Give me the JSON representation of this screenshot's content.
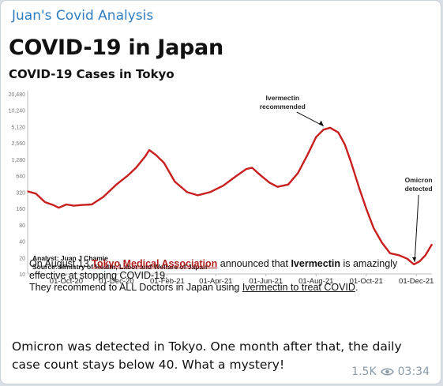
{
  "message": {
    "channel_name": "Juan's Covid Analysis",
    "text": "Omicron was detected in Tokyo. One month after that, the daily case count stays below 40. What a mystery!",
    "views": "1.5K",
    "time": "03:34"
  },
  "image": {
    "title": "COVID-19 in Japan",
    "subtitle": "COVID-19 Cases  in Tokyo",
    "note_line1_prefix": "On August 13 ",
    "note_line1_link": "Tokyo Medical Association",
    "note_line1_mid": " announced that ",
    "note_line1_bold": "Ivermectin",
    "note_line1_suffix": " is amazingly",
    "note_line2": "effective at stopping COVID-19.",
    "note_line3_prefix": "They recommend to ALL Doctors in Japan using ",
    "note_line3_link": "Ivermectin to treat COVID",
    "note_line3_suffix": "."
  },
  "chart_data": {
    "type": "line",
    "title": "COVID-19 Cases  in Tokyo",
    "y_scale": "log",
    "y_ticks": [
      "20,480",
      "10,240",
      "5,120",
      "2,560",
      "1,280",
      "640",
      "320",
      "160",
      "80",
      "40",
      "20",
      "10"
    ],
    "x_ticks": [
      "01-Oct-20",
      "01-Dec-20",
      "01-Feb-21",
      "01-Apr-21",
      "01-Jun-21",
      "01-Aug-21",
      "01-Oct-21",
      "01-Dec-21"
    ],
    "x_range": [
      "2020-08-15",
      "2021-12-20"
    ],
    "ylim": [
      10,
      20480
    ],
    "grid": false,
    "series": [
      {
        "color": "#c81e1e",
        "points": [
          [
            "2020-08-15",
            330
          ],
          [
            "2020-08-25",
            300
          ],
          [
            "2020-09-05",
            210
          ],
          [
            "2020-09-15",
            185
          ],
          [
            "2020-09-22",
            165
          ],
          [
            "2020-10-01",
            190
          ],
          [
            "2020-10-10",
            180
          ],
          [
            "2020-10-20",
            185
          ],
          [
            "2020-11-01",
            190
          ],
          [
            "2020-11-15",
            260
          ],
          [
            "2020-12-01",
            440
          ],
          [
            "2020-12-15",
            650
          ],
          [
            "2020-12-25",
            900
          ],
          [
            "2021-01-05",
            1450
          ],
          [
            "2021-01-10",
            1900
          ],
          [
            "2021-01-18",
            1550
          ],
          [
            "2021-01-28",
            1100
          ],
          [
            "2021-02-10",
            500
          ],
          [
            "2021-02-25",
            320
          ],
          [
            "2021-03-10",
            280
          ],
          [
            "2021-03-25",
            320
          ],
          [
            "2021-04-10",
            420
          ],
          [
            "2021-04-25",
            620
          ],
          [
            "2021-05-08",
            850
          ],
          [
            "2021-05-15",
            900
          ],
          [
            "2021-05-25",
            660
          ],
          [
            "2021-06-05",
            480
          ],
          [
            "2021-06-15",
            400
          ],
          [
            "2021-06-28",
            440
          ],
          [
            "2021-07-10",
            720
          ],
          [
            "2021-07-22",
            1600
          ],
          [
            "2021-08-01",
            3300
          ],
          [
            "2021-08-10",
            4500
          ],
          [
            "2021-08-18",
            4900
          ],
          [
            "2021-08-28",
            4000
          ],
          [
            "2021-09-05",
            2400
          ],
          [
            "2021-09-12",
            1200
          ],
          [
            "2021-09-22",
            400
          ],
          [
            "2021-10-01",
            160
          ],
          [
            "2021-10-10",
            70
          ],
          [
            "2021-10-20",
            38
          ],
          [
            "2021-10-30",
            24
          ],
          [
            "2021-11-10",
            22
          ],
          [
            "2021-11-20",
            19
          ],
          [
            "2021-11-28",
            15
          ],
          [
            "2021-12-05",
            17
          ],
          [
            "2021-12-12",
            22
          ],
          [
            "2021-12-20",
            35
          ]
        ]
      }
    ],
    "annotations": [
      {
        "text_line1": "Ivermectin",
        "text_line2": "recommended",
        "date": "2021-08-13",
        "value": 4600
      },
      {
        "text_line1": "Omicron",
        "text_line2": "detected",
        "date": "2021-11-28",
        "value": 15
      }
    ],
    "source_line1": "Analyst: Juan J Chamie",
    "source_line2": "Source: Ministry of Health, Labor and Welfare of Japan"
  },
  "colors": {
    "channel_name": "#2f7ec1",
    "line": "#c81e1e",
    "link": "#b01e1e",
    "meta": "#8a9aa8"
  },
  "icons": {
    "views": "eye-icon"
  }
}
